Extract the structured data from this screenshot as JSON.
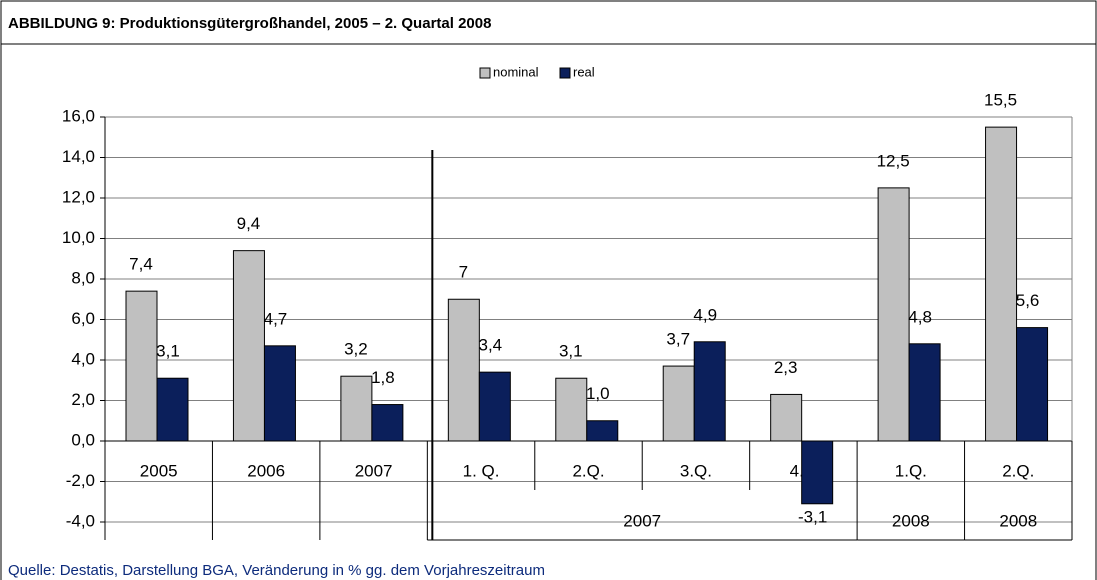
{
  "chart_data": {
    "type": "bar",
    "title": "ABBILDUNG 9: Produktionsgütergroßhandel, 2005 – 2. Quartal 2008",
    "footnote": "Quelle: Destatis, Darstellung BGA, Veränderung in % gg. dem Vorjahreszeitraum",
    "categories": [
      "2005",
      "2006",
      "2007",
      "1. Q.",
      "2.Q.",
      "3.Q.",
      "4.Q",
      "1.Q.",
      "2.Q."
    ],
    "category_groups": [
      null,
      null,
      null,
      "2007",
      null,
      null,
      null,
      "2008",
      "2008"
    ],
    "series": [
      {
        "name": "nominal",
        "color": "#c0c0c0",
        "values": [
          7.4,
          9.4,
          3.2,
          7,
          3.1,
          3.7,
          2.3,
          12.5,
          15.5
        ],
        "value_labels": [
          "7,4",
          "9,4",
          "3,2",
          "7",
          "3,1",
          "3,7",
          "2,3",
          "12,5",
          "15,5"
        ]
      },
      {
        "name": "real",
        "color": "#0b1f5b",
        "values": [
          3.1,
          4.7,
          1.8,
          3.4,
          1.0,
          4.9,
          -3.1,
          4.8,
          5.6
        ],
        "value_labels": [
          "3,1",
          "4,7",
          "1,8",
          "3,4",
          "1,0",
          "4,9",
          "-3,1",
          "4,8",
          "5,6"
        ]
      }
    ],
    "ylim": [
      -4,
      16
    ],
    "yticks": [
      {
        "value": -4,
        "label": "-4,0"
      },
      {
        "value": -2,
        "label": "-2,0"
      },
      {
        "value": 0,
        "label": "0,0"
      },
      {
        "value": 2,
        "label": "2,0"
      },
      {
        "value": 4,
        "label": "4,0"
      },
      {
        "value": 6,
        "label": "6,0"
      },
      {
        "value": 8,
        "label": "8,0"
      },
      {
        "value": 10,
        "label": "10,0"
      },
      {
        "value": 12,
        "label": "12,0"
      },
      {
        "value": 14,
        "label": "14,0"
      },
      {
        "value": 16,
        "label": "16,0"
      }
    ],
    "grid": true,
    "legend": "top"
  }
}
